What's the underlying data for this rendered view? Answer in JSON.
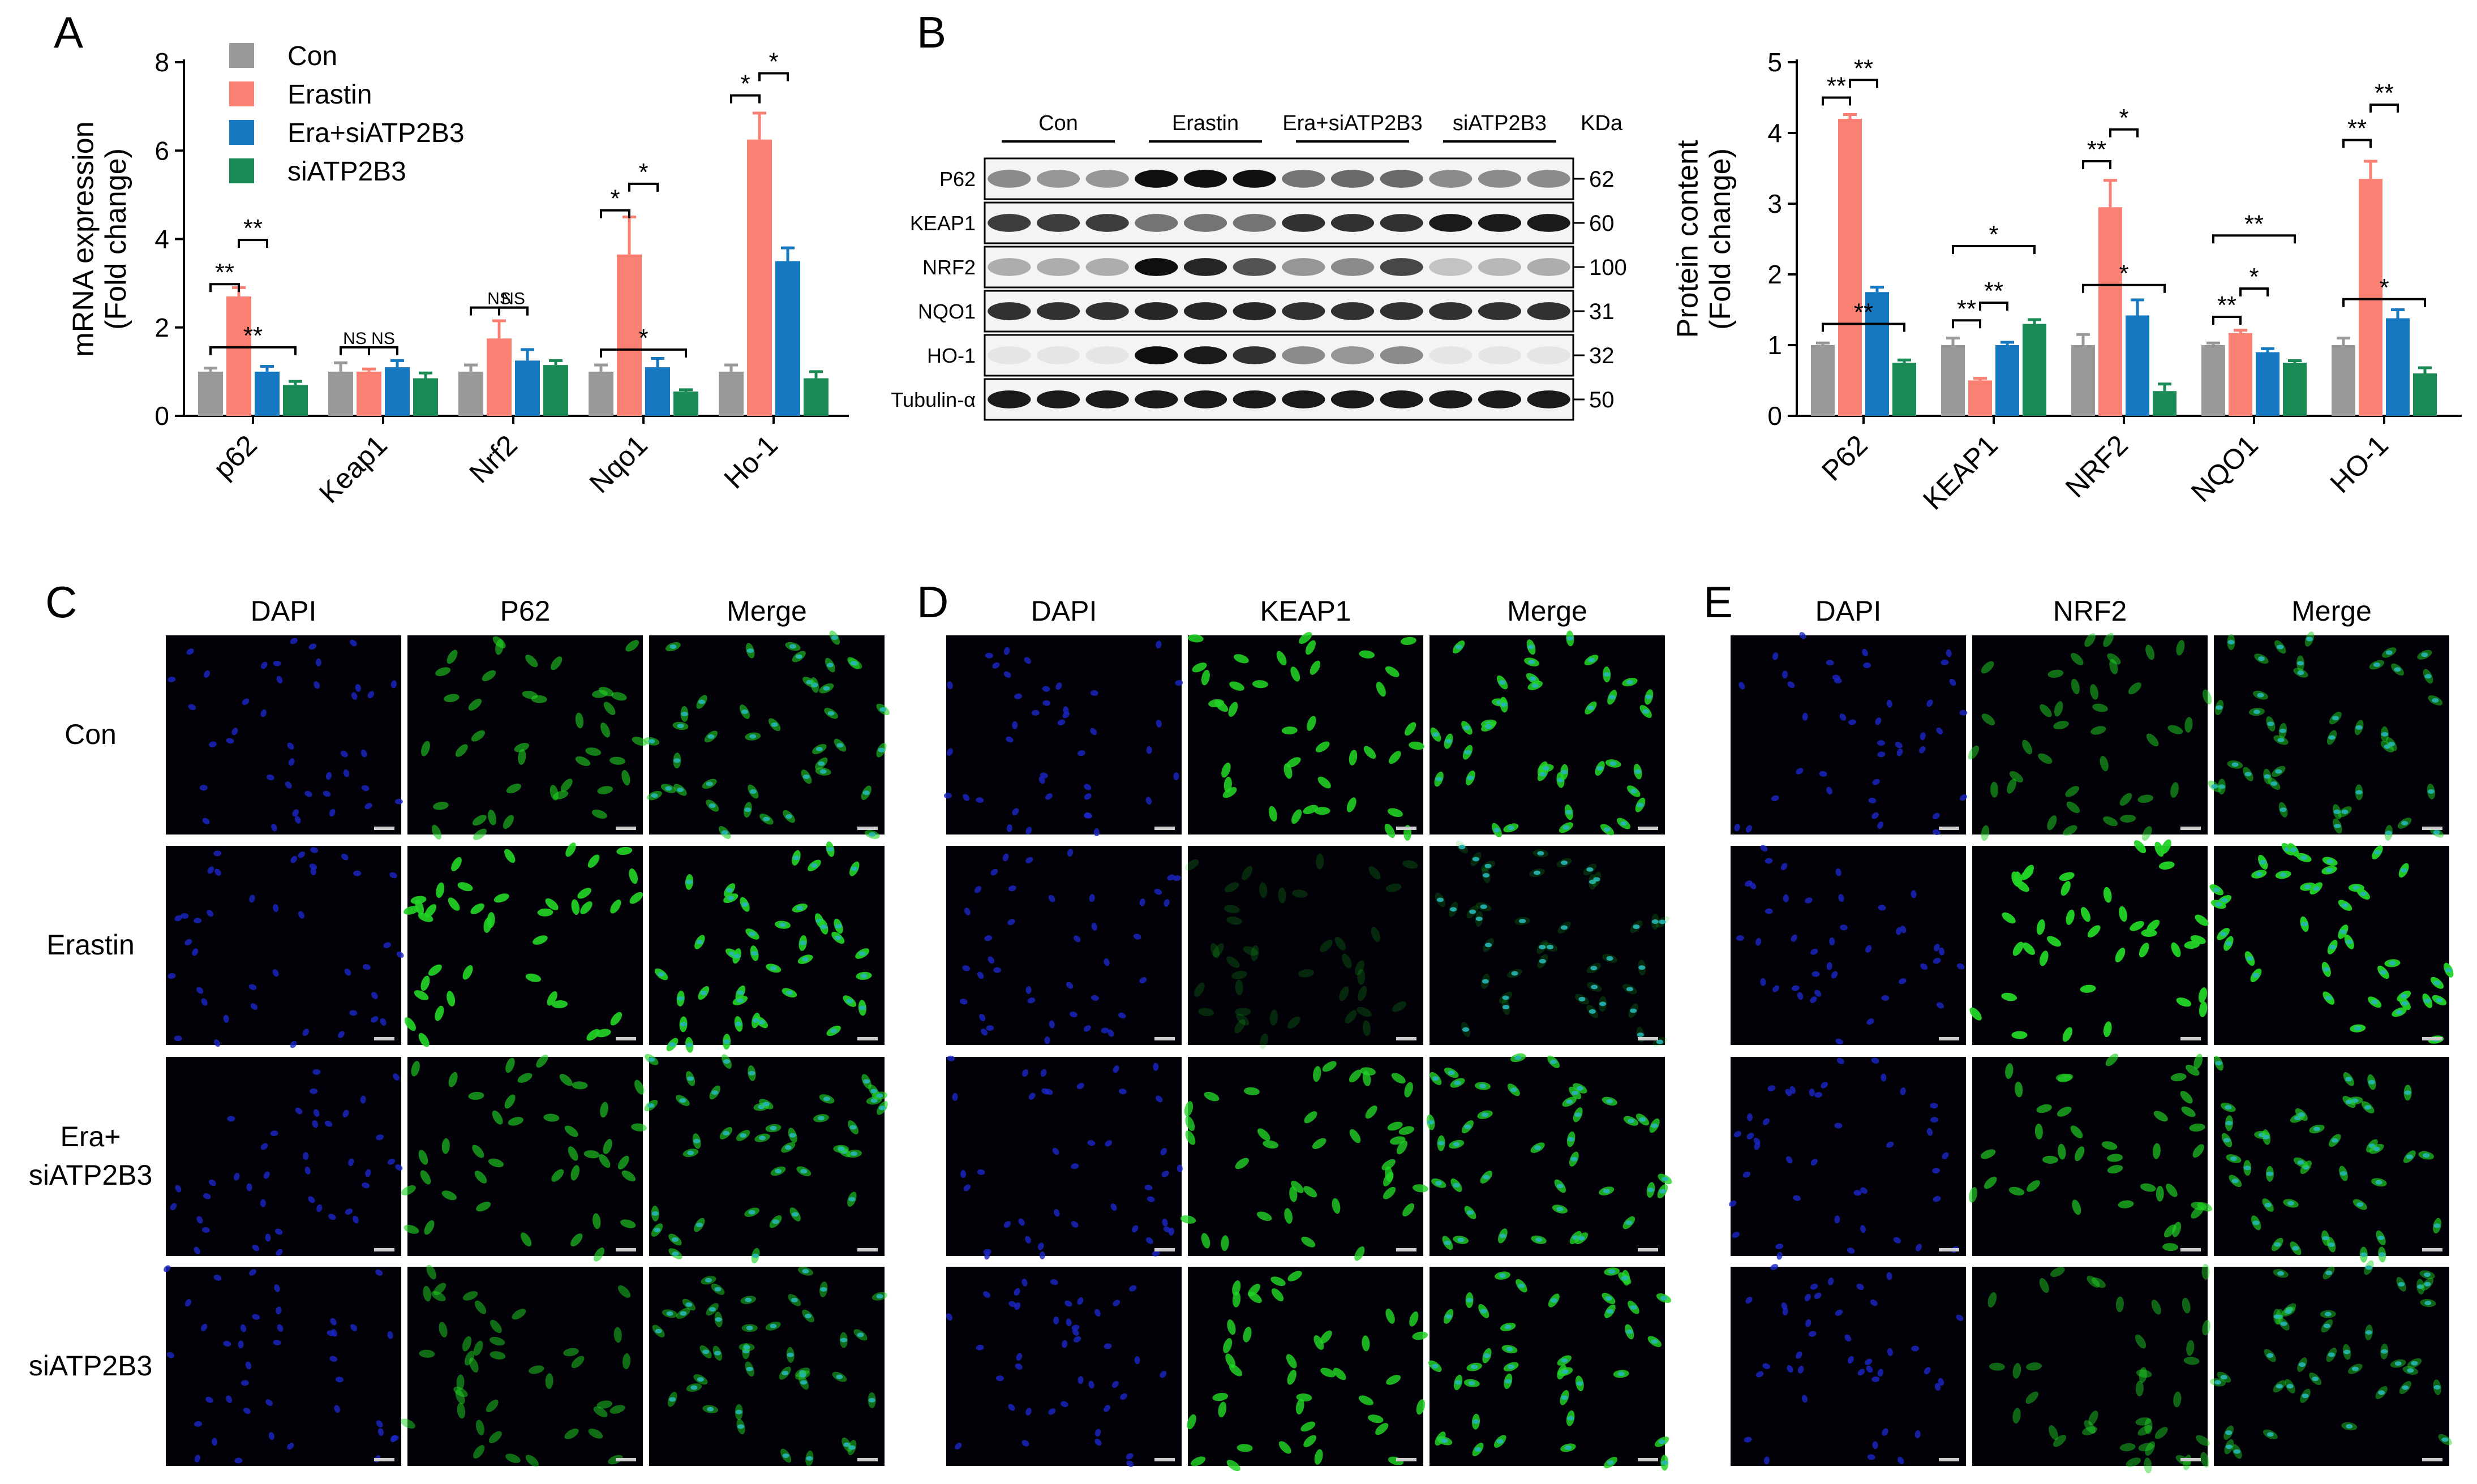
{
  "panels": {
    "A": "A",
    "B": "B",
    "C": "C",
    "D": "D",
    "E": "E"
  },
  "legend": [
    "Con",
    "Erastin",
    "Era+siATP2B3",
    "siATP2B3"
  ],
  "colors": {
    "Con": "#999999",
    "Erastin": "#f98072",
    "Era+siATP2B3": "#1678c1",
    "siATP2B3": "#1a8a55",
    "dapi": "#1c25c8",
    "green": "#22d426",
    "merge": "#27b6b6"
  },
  "chart_data": [
    {
      "type": "bar",
      "panel": "A",
      "ylabel_line1": "mRNA expression",
      "ylabel_line2": "(Fold change)",
      "ylim": [
        0,
        8
      ],
      "yticks": [
        "0",
        "2",
        "4",
        "6",
        "8"
      ],
      "categories": [
        "p62",
        "Keap1",
        "Nrf2",
        "Nqo1",
        "Ho-1"
      ],
      "series": [
        {
          "name": "Con",
          "values": [
            1.0,
            1.0,
            1.0,
            1.0,
            1.0
          ],
          "errors": [
            0.08,
            0.2,
            0.15,
            0.15,
            0.15
          ]
        },
        {
          "name": "Erastin",
          "values": [
            2.7,
            1.0,
            1.75,
            3.65,
            6.25
          ],
          "errors": [
            0.2,
            0.06,
            0.4,
            0.85,
            0.6
          ]
        },
        {
          "name": "Era+siATP2B3",
          "values": [
            1.0,
            1.1,
            1.25,
            1.1,
            3.5
          ],
          "errors": [
            0.12,
            0.15,
            0.25,
            0.2,
            0.3
          ]
        },
        {
          "name": "siATP2B3",
          "values": [
            0.7,
            0.85,
            1.15,
            0.55,
            0.85
          ],
          "errors": [
            0.08,
            0.12,
            0.1,
            0.04,
            0.15
          ]
        }
      ],
      "significance": [
        {
          "cat": 0,
          "from": 0,
          "to": 1,
          "label": "**",
          "y": 2.98
        },
        {
          "cat": 0,
          "from": 1,
          "to": 2,
          "label": "**",
          "y": 3.98
        },
        {
          "cat": 0,
          "from": 0,
          "to": 3,
          "label": "**",
          "y": 1.55,
          "span_to": 3.55
        },
        {
          "cat": 1,
          "from": 0,
          "to": 1,
          "label": "NS",
          "y": 1.55
        },
        {
          "cat": 1,
          "from": 1,
          "to": 2,
          "label": "NS",
          "y": 1.55
        },
        {
          "cat": 2,
          "from": 0,
          "to": 2,
          "label": "NS",
          "y": 2.45
        },
        {
          "cat": 2,
          "from": 1,
          "to": 2,
          "label": "NS",
          "y": 2.45
        },
        {
          "cat": 3,
          "from": 0,
          "to": 1,
          "label": "*",
          "y": 4.65
        },
        {
          "cat": 3,
          "from": 1,
          "to": 2,
          "label": "*",
          "y": 5.25
        },
        {
          "cat": 3,
          "from": 0,
          "to": 3,
          "label": "*",
          "y": 1.5
        },
        {
          "cat": 4,
          "from": 0,
          "to": 1,
          "label": "*",
          "y": 7.25
        },
        {
          "cat": 4,
          "from": 1,
          "to": 2,
          "label": "*",
          "y": 7.75
        }
      ]
    },
    {
      "type": "bar",
      "panel": "B",
      "ylabel_line1": "Protein content",
      "ylabel_line2": "(Fold change)",
      "ylim": [
        0,
        5
      ],
      "yticks": [
        "0",
        "1",
        "2",
        "3",
        "4",
        "5"
      ],
      "categories": [
        "P62",
        "KEAP1",
        "NRF2",
        "NQO1",
        "HO-1"
      ],
      "series": [
        {
          "name": "Con",
          "values": [
            1.0,
            1.0,
            1.0,
            1.0,
            1.0
          ],
          "errors": [
            0.03,
            0.1,
            0.15,
            0.03,
            0.1
          ]
        },
        {
          "name": "Erastin",
          "values": [
            4.2,
            0.5,
            2.95,
            1.17,
            3.35
          ],
          "errors": [
            0.06,
            0.03,
            0.38,
            0.04,
            0.25
          ]
        },
        {
          "name": "Era+siATP2B3",
          "values": [
            1.75,
            1.0,
            1.42,
            0.9,
            1.38
          ],
          "errors": [
            0.07,
            0.04,
            0.22,
            0.05,
            0.12
          ]
        },
        {
          "name": "siATP2B3",
          "values": [
            0.75,
            1.3,
            0.35,
            0.75,
            0.6
          ],
          "errors": [
            0.04,
            0.06,
            0.1,
            0.03,
            0.08
          ]
        }
      ]
    }
  ],
  "blot": {
    "groups": [
      "Con",
      "Erastin",
      "Era+siATP2B3",
      "siATP2B3"
    ],
    "unit": "KDa",
    "rows": [
      {
        "label": "P62",
        "kda": "62"
      },
      {
        "label": "KEAP1",
        "kda": "60"
      },
      {
        "label": "NRF2",
        "kda": "100"
      },
      {
        "label": "NQO1",
        "kda": "31"
      },
      {
        "label": "HO-1",
        "kda": "32"
      },
      {
        "label": "Tubulin-α",
        "kda": "50"
      }
    ],
    "intensity": [
      [
        0.45,
        0.4,
        0.4,
        1.0,
        1.0,
        1.0,
        0.55,
        0.6,
        0.6,
        0.45,
        0.45,
        0.45
      ],
      [
        0.8,
        0.8,
        0.8,
        0.55,
        0.55,
        0.55,
        0.85,
        0.85,
        0.85,
        0.95,
        0.95,
        0.95
      ],
      [
        0.3,
        0.3,
        0.3,
        1.0,
        0.9,
        0.7,
        0.4,
        0.45,
        0.75,
        0.2,
        0.25,
        0.3
      ],
      [
        0.85,
        0.85,
        0.85,
        0.9,
        0.9,
        0.9,
        0.85,
        0.85,
        0.85,
        0.85,
        0.85,
        0.85
      ],
      [
        0.05,
        0.05,
        0.05,
        1.0,
        0.95,
        0.85,
        0.45,
        0.4,
        0.45,
        0.05,
        0.05,
        0.05
      ],
      [
        0.95,
        0.95,
        0.95,
        0.95,
        0.95,
        0.95,
        0.95,
        0.95,
        0.95,
        0.95,
        0.95,
        0.95
      ]
    ]
  },
  "micro": {
    "panelC": {
      "columns": [
        "DAPI",
        "P62",
        "Merge"
      ]
    },
    "panelD": {
      "columns": [
        "DAPI",
        "KEAP1",
        "Merge"
      ]
    },
    "panelE": {
      "columns": [
        "DAPI",
        "NRF2",
        "Merge"
      ]
    },
    "rows": [
      "Con",
      "Erastin",
      "Era+\nsiATP2B3",
      "siATP2B3"
    ],
    "green_level": {
      "C": [
        0.55,
        0.95,
        0.6,
        0.45
      ],
      "D": [
        0.9,
        0.05,
        0.8,
        0.85
      ],
      "E": [
        0.45,
        1.0,
        0.65,
        0.4
      ]
    }
  }
}
